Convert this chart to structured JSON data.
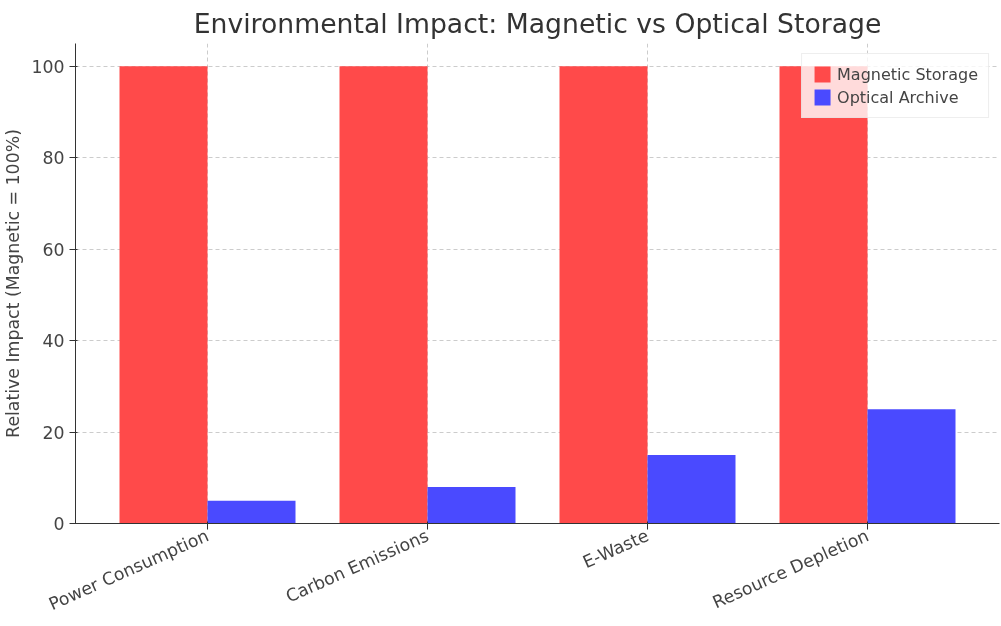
{
  "chart_data": {
    "type": "bar",
    "title": "Environmental Impact: Magnetic vs Optical Storage",
    "ylabel": "Relative Impact (Magnetic = 100%)",
    "categories": [
      "Power Consumption",
      "Carbon Emissions",
      "E-Waste",
      "Resource Depletion"
    ],
    "series": [
      {
        "name": "Magnetic Storage",
        "color": "#ff4a4a",
        "values": [
          100,
          100,
          100,
          100
        ]
      },
      {
        "name": "Optical Archive",
        "color": "#4a4aff",
        "values": [
          5,
          8,
          15,
          25
        ]
      }
    ],
    "ylim": [
      0,
      105
    ],
    "yticks": [
      0,
      20,
      40,
      60,
      80,
      100
    ],
    "grid": true,
    "legend": "top right"
  }
}
